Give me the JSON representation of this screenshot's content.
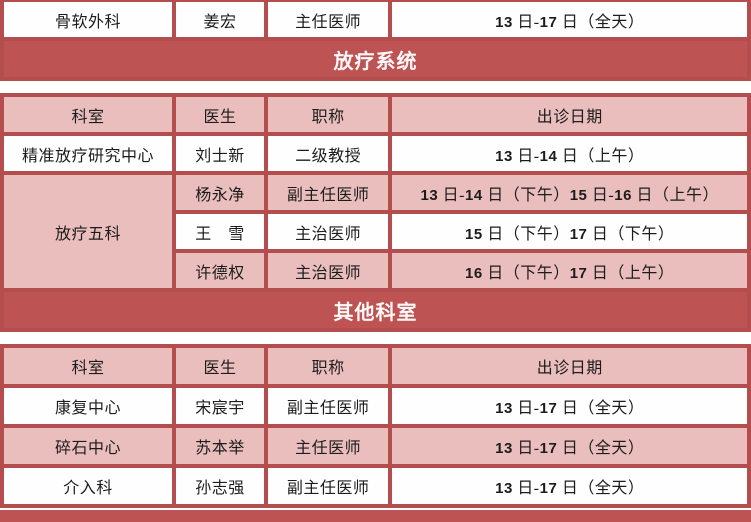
{
  "colors": {
    "banner_red": "#bd5353",
    "grid_red": "#b44e4e",
    "cell_pink": "#ebbebe",
    "cell_white": "#ffffff",
    "banner_text": "#ffffff",
    "cell_text": "#1c1c1c"
  },
  "top_table": {
    "row": {
      "dept": "骨软外科",
      "doctor": "姜宏",
      "title": "主任医师",
      "dates": "13 日-17 日（全天）"
    },
    "banner": "放疗系统"
  },
  "radiotherapy": {
    "headers": {
      "dept": "科室",
      "doctor": "医生",
      "title": "职称",
      "dates": "出诊日期"
    },
    "rows": [
      {
        "dept": "精准放疗研究中心",
        "doctor": "刘士新",
        "title": "二级教授",
        "dates": "13 日-14 日（上午）"
      },
      {
        "dept": "放疗五科",
        "doctor": "杨永净",
        "title": "副主任医师",
        "dates": "13 日-14 日（下午）15 日-16 日（上午）"
      },
      {
        "doctor": "王　雪",
        "title": "主治医师",
        "dates": "15 日（下午）17 日（下午）"
      },
      {
        "doctor": "许德权",
        "title": "主治医师",
        "dates": "16 日（下午）17 日（上午）"
      }
    ],
    "banner": "其他科室"
  },
  "others": {
    "headers": {
      "dept": "科室",
      "doctor": "医生",
      "title": "职称",
      "dates": "出诊日期"
    },
    "rows": [
      {
        "dept": "康复中心",
        "doctor": "宋宸宇",
        "title": "副主任医师",
        "dates": "13 日-17 日（全天）"
      },
      {
        "dept": "碎石中心",
        "doctor": "苏本举",
        "title": "主任医师",
        "dates": "13 日-17 日（全天）"
      },
      {
        "dept": "介入科",
        "doctor": "孙志强",
        "title": "副主任医师",
        "dates": "13 日-17 日（全天）"
      }
    ]
  }
}
